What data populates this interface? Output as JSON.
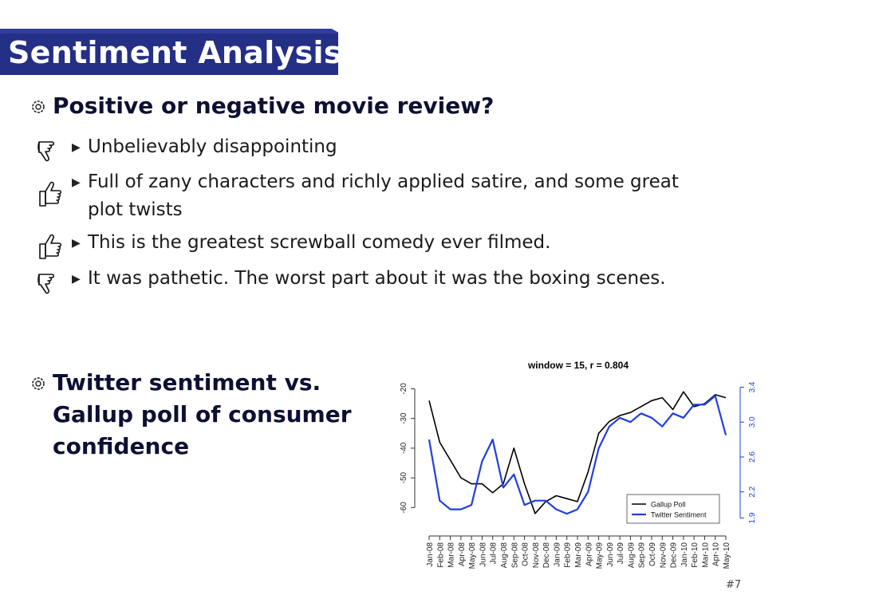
{
  "slide": {
    "title": "Sentiment Analysis",
    "section1": {
      "heading": "Positive or negative movie review?"
    },
    "reviews": [
      {
        "text": "Unbelievably disappointing",
        "sentiment": "negative",
        "icon": "thumbs-down-icon"
      },
      {
        "text": "Full of zany characters and richly applied satire, and some great",
        "text2": "plot twists",
        "sentiment": "positive",
        "icon": "thumbs-up-icon"
      },
      {
        "text": "This is the greatest screwball comedy ever filmed.",
        "sentiment": "positive",
        "icon": "thumbs-up-icon"
      },
      {
        "text": "It was pathetic. The worst part about it was the boxing scenes.",
        "sentiment": "negative",
        "icon": "thumbs-down-icon"
      }
    ],
    "section2": {
      "line1": "Twitter sentiment vs.",
      "line2": "Gallup poll of consumer",
      "line3": "confidence"
    },
    "page_number": "#7",
    "colors": {
      "title_bar": "#242f86",
      "gallup": "#000000",
      "twitter": "#1f3fe0"
    }
  },
  "chart_data": {
    "type": "line",
    "title": "window = 15, r = 0.804",
    "x": [
      "Jan-08",
      "Feb-08",
      "Mar-08",
      "Apr-08",
      "May-08",
      "Jun-08",
      "Jul-08",
      "Aug-08",
      "Sep-08",
      "Oct-08",
      "Nov-08",
      "Dec-08",
      "Jan-09",
      "Feb-09",
      "Mar-09",
      "Apr-09",
      "May-09",
      "Jun-09",
      "Jul-09",
      "Aug-09",
      "Sep-09",
      "Oct-09",
      "Nov-09",
      "Dec-09",
      "Jan-10",
      "Feb-10",
      "Mar-10",
      "Apr-10",
      "May-10"
    ],
    "y_left": {
      "ticks": [
        "-20",
        "-30",
        "-40",
        "-50",
        "-60"
      ],
      "range": [
        -65,
        -18
      ]
    },
    "y_right": {
      "ticks": [
        "3.4",
        "3.0",
        "2.6",
        "2.2",
        "1.9"
      ],
      "range": [
        1.85,
        3.45
      ]
    },
    "series": [
      {
        "name": "Gallup Poll",
        "axis": "left",
        "values": [
          -24,
          -38,
          -44,
          -50,
          -52,
          -52,
          -55,
          -52,
          -40,
          -52,
          -62,
          -58,
          -56,
          -57,
          -58,
          -48,
          -35,
          -31,
          -29,
          -28,
          -26,
          -24,
          -23,
          -27,
          -21,
          -26,
          -25,
          -22,
          -23
        ]
      },
      {
        "name": "Twitter Sentiment",
        "axis": "right",
        "values": [
          2.8,
          2.1,
          2.0,
          2.0,
          2.05,
          2.55,
          2.8,
          2.25,
          2.4,
          2.05,
          2.1,
          2.1,
          2.0,
          1.95,
          2.0,
          2.2,
          2.7,
          2.95,
          3.05,
          3.0,
          3.1,
          3.05,
          2.95,
          3.1,
          3.05,
          3.2,
          3.2,
          3.3,
          2.85
        ]
      }
    ],
    "legend": "bottom-right",
    "grid": false
  }
}
